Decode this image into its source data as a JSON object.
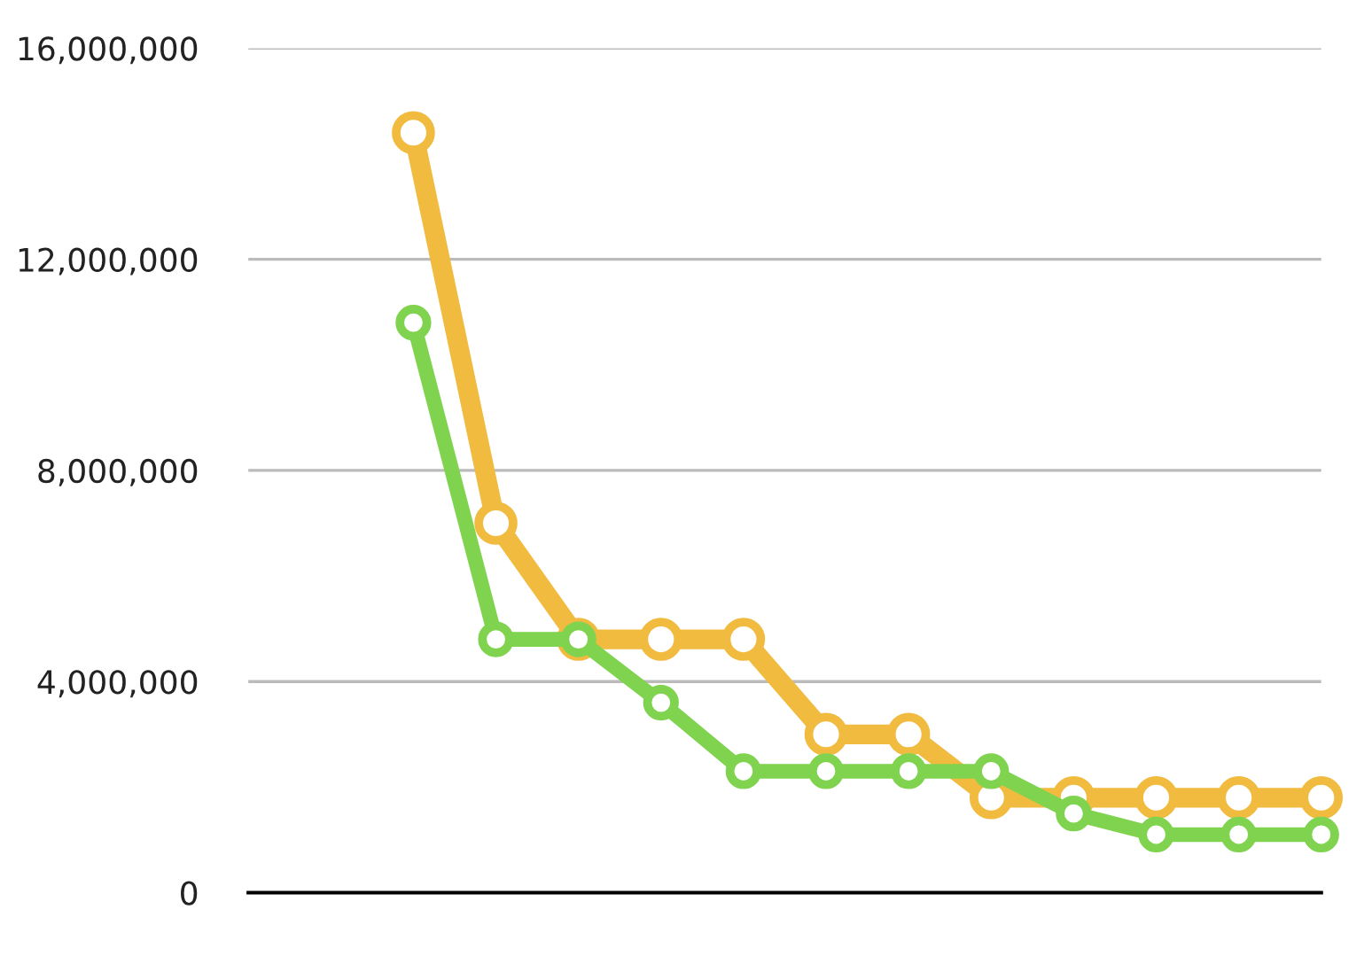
{
  "chart_data": {
    "type": "line",
    "categories": [
      null,
      null,
      null,
      null,
      null,
      null,
      null,
      null,
      null,
      null,
      null,
      null,
      null,
      null
    ],
    "series": [
      {
        "color": "#f0bb3f",
        "values": [
          null,
          null,
          14400000,
          7000000,
          4800000,
          4800000,
          4800000,
          3000000,
          3000000,
          1800000,
          1800000,
          1800000,
          1800000,
          1800000
        ]
      },
      {
        "color": "#7fd34e",
        "values": [
          null,
          null,
          10800000,
          4800000,
          4800000,
          3600000,
          2300000,
          2300000,
          2300000,
          2300000,
          1500000,
          1100000,
          1100000,
          1100000
        ]
      }
    ],
    "ylim": [
      0,
      16000000
    ],
    "yticks": [
      {
        "value": 0,
        "label": "0"
      },
      {
        "value": 4000000,
        "label": "4,000,000"
      },
      {
        "value": 8000000,
        "label": "8,000,000"
      },
      {
        "value": 12000000,
        "label": "12,000,000"
      },
      {
        "value": 16000000,
        "label": "16,000,000"
      }
    ],
    "grid": "y",
    "legend": false,
    "tick_labels": "y",
    "marker": "circle",
    "line_style": "solid"
  }
}
